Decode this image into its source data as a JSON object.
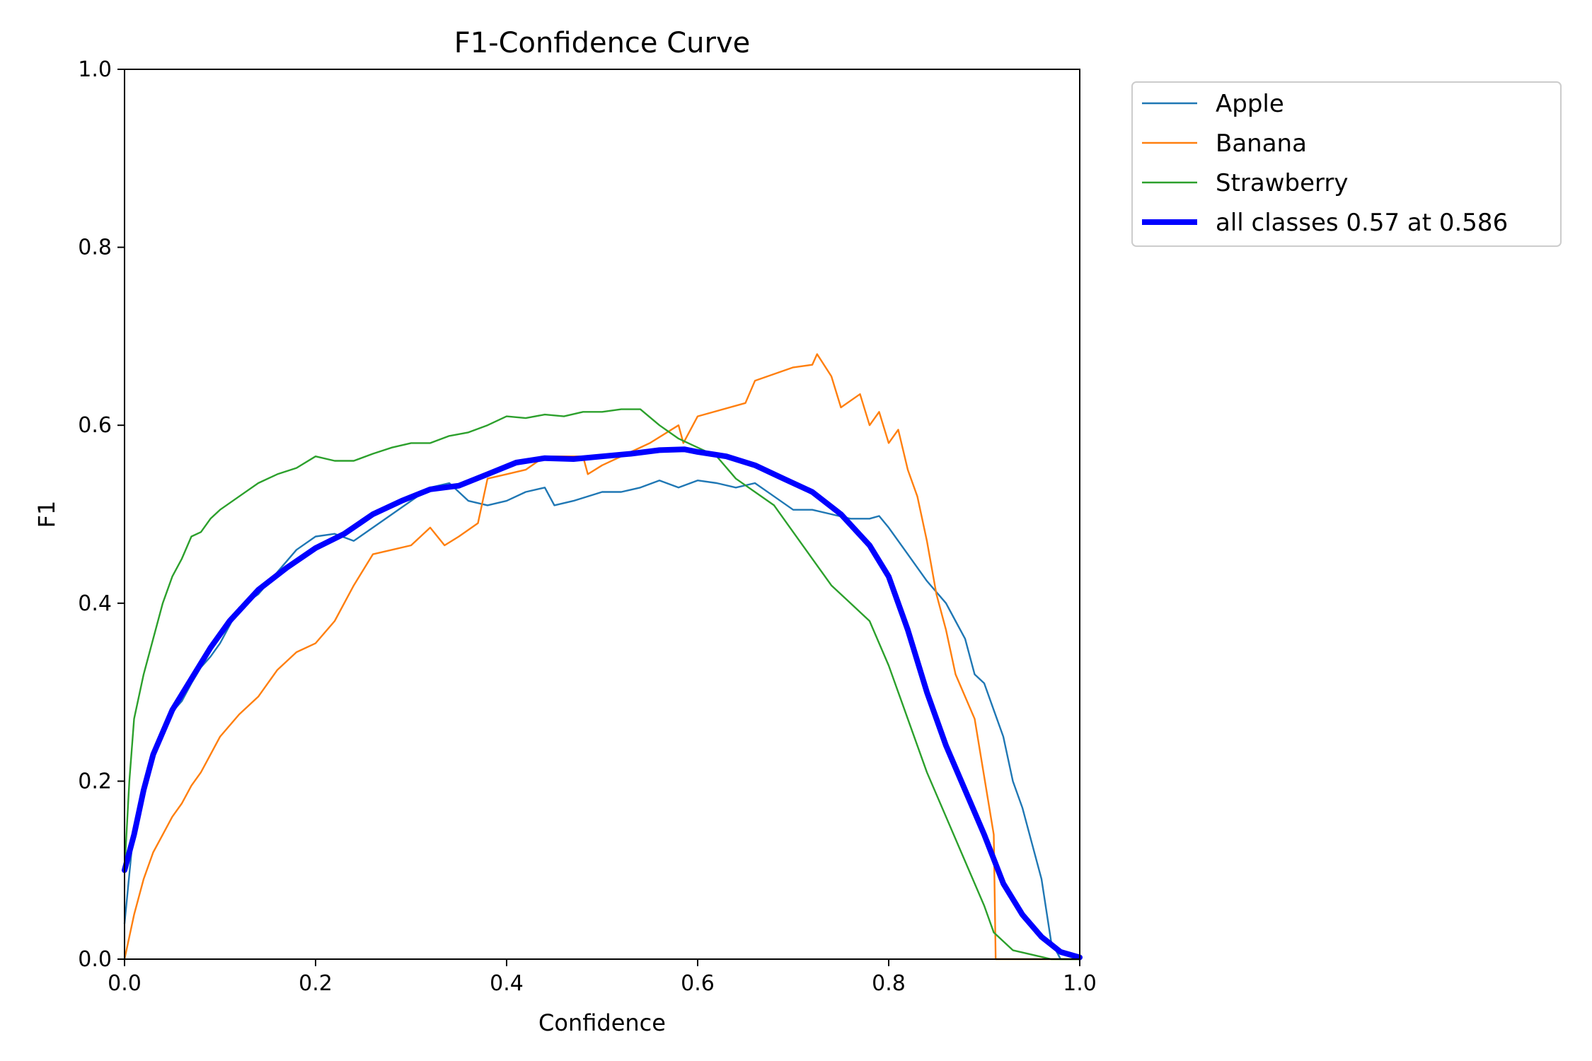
{
  "chart_data": {
    "type": "line",
    "title": "F1-Confidence Curve",
    "xlabel": "Confidence",
    "ylabel": "F1",
    "xlim": [
      0,
      1
    ],
    "ylim": [
      0,
      1
    ],
    "xticks": [
      "0.0",
      "0.2",
      "0.4",
      "0.6",
      "0.8",
      "1.0"
    ],
    "yticks": [
      "0.0",
      "0.2",
      "0.4",
      "0.6",
      "0.8",
      "1.0"
    ],
    "grid": false,
    "legend_position": "outside-top-right",
    "series": [
      {
        "name": "Apple",
        "color": "#1f77b4",
        "points": [
          [
            0.0,
            0.04
          ],
          [
            0.01,
            0.15
          ],
          [
            0.02,
            0.19
          ],
          [
            0.03,
            0.225
          ],
          [
            0.04,
            0.255
          ],
          [
            0.05,
            0.278
          ],
          [
            0.06,
            0.29
          ],
          [
            0.07,
            0.31
          ],
          [
            0.08,
            0.328
          ],
          [
            0.09,
            0.34
          ],
          [
            0.1,
            0.355
          ],
          [
            0.11,
            0.375
          ],
          [
            0.12,
            0.395
          ],
          [
            0.14,
            0.41
          ],
          [
            0.16,
            0.435
          ],
          [
            0.18,
            0.46
          ],
          [
            0.2,
            0.475
          ],
          [
            0.22,
            0.478
          ],
          [
            0.24,
            0.47
          ],
          [
            0.26,
            0.485
          ],
          [
            0.28,
            0.5
          ],
          [
            0.3,
            0.515
          ],
          [
            0.32,
            0.53
          ],
          [
            0.34,
            0.535
          ],
          [
            0.36,
            0.515
          ],
          [
            0.38,
            0.51
          ],
          [
            0.4,
            0.515
          ],
          [
            0.42,
            0.525
          ],
          [
            0.44,
            0.53
          ],
          [
            0.45,
            0.51
          ],
          [
            0.47,
            0.515
          ],
          [
            0.5,
            0.525
          ],
          [
            0.52,
            0.525
          ],
          [
            0.54,
            0.53
          ],
          [
            0.56,
            0.538
          ],
          [
            0.58,
            0.53
          ],
          [
            0.6,
            0.538
          ],
          [
            0.62,
            0.535
          ],
          [
            0.64,
            0.53
          ],
          [
            0.66,
            0.535
          ],
          [
            0.68,
            0.52
          ],
          [
            0.7,
            0.505
          ],
          [
            0.72,
            0.505
          ],
          [
            0.74,
            0.5
          ],
          [
            0.76,
            0.495
          ],
          [
            0.78,
            0.495
          ],
          [
            0.79,
            0.498
          ],
          [
            0.8,
            0.485
          ],
          [
            0.82,
            0.455
          ],
          [
            0.84,
            0.425
          ],
          [
            0.86,
            0.4
          ],
          [
            0.87,
            0.38
          ],
          [
            0.88,
            0.36
          ],
          [
            0.89,
            0.32
          ],
          [
            0.9,
            0.31
          ],
          [
            0.91,
            0.28
          ],
          [
            0.92,
            0.25
          ],
          [
            0.93,
            0.2
          ],
          [
            0.94,
            0.17
          ],
          [
            0.95,
            0.13
          ],
          [
            0.96,
            0.09
          ],
          [
            0.97,
            0.02
          ],
          [
            0.98,
            0.0
          ],
          [
            1.0,
            0.0
          ]
        ]
      },
      {
        "name": "Banana",
        "color": "#ff7f0e",
        "points": [
          [
            0.0,
            0.0
          ],
          [
            0.01,
            0.05
          ],
          [
            0.02,
            0.09
          ],
          [
            0.03,
            0.12
          ],
          [
            0.04,
            0.14
          ],
          [
            0.05,
            0.16
          ],
          [
            0.06,
            0.175
          ],
          [
            0.07,
            0.195
          ],
          [
            0.08,
            0.21
          ],
          [
            0.09,
            0.23
          ],
          [
            0.1,
            0.25
          ],
          [
            0.12,
            0.275
          ],
          [
            0.14,
            0.295
          ],
          [
            0.16,
            0.325
          ],
          [
            0.18,
            0.345
          ],
          [
            0.2,
            0.355
          ],
          [
            0.22,
            0.38
          ],
          [
            0.24,
            0.42
          ],
          [
            0.26,
            0.455
          ],
          [
            0.28,
            0.46
          ],
          [
            0.3,
            0.465
          ],
          [
            0.32,
            0.485
          ],
          [
            0.335,
            0.465
          ],
          [
            0.35,
            0.475
          ],
          [
            0.37,
            0.49
          ],
          [
            0.38,
            0.54
          ],
          [
            0.4,
            0.545
          ],
          [
            0.42,
            0.55
          ],
          [
            0.44,
            0.565
          ],
          [
            0.48,
            0.565
          ],
          [
            0.485,
            0.545
          ],
          [
            0.5,
            0.555
          ],
          [
            0.55,
            0.58
          ],
          [
            0.58,
            0.6
          ],
          [
            0.585,
            0.58
          ],
          [
            0.6,
            0.61
          ],
          [
            0.65,
            0.625
          ],
          [
            0.66,
            0.65
          ],
          [
            0.7,
            0.665
          ],
          [
            0.72,
            0.668
          ],
          [
            0.725,
            0.68
          ],
          [
            0.74,
            0.655
          ],
          [
            0.75,
            0.62
          ],
          [
            0.77,
            0.635
          ],
          [
            0.78,
            0.6
          ],
          [
            0.79,
            0.615
          ],
          [
            0.8,
            0.58
          ],
          [
            0.81,
            0.595
          ],
          [
            0.82,
            0.55
          ],
          [
            0.83,
            0.52
          ],
          [
            0.84,
            0.47
          ],
          [
            0.85,
            0.41
          ],
          [
            0.86,
            0.37
          ],
          [
            0.87,
            0.32
          ],
          [
            0.89,
            0.27
          ],
          [
            0.9,
            0.205
          ],
          [
            0.91,
            0.14
          ],
          [
            0.912,
            0.0
          ],
          [
            1.0,
            0.0
          ]
        ]
      },
      {
        "name": "Strawberry",
        "color": "#2ca02c",
        "points": [
          [
            0.0,
            0.1
          ],
          [
            0.005,
            0.2
          ],
          [
            0.01,
            0.27
          ],
          [
            0.02,
            0.32
          ],
          [
            0.03,
            0.36
          ],
          [
            0.04,
            0.4
          ],
          [
            0.05,
            0.43
          ],
          [
            0.06,
            0.45
          ],
          [
            0.07,
            0.475
          ],
          [
            0.08,
            0.48
          ],
          [
            0.09,
            0.495
          ],
          [
            0.1,
            0.505
          ],
          [
            0.12,
            0.52
          ],
          [
            0.14,
            0.535
          ],
          [
            0.16,
            0.545
          ],
          [
            0.18,
            0.552
          ],
          [
            0.2,
            0.565
          ],
          [
            0.22,
            0.56
          ],
          [
            0.24,
            0.56
          ],
          [
            0.26,
            0.568
          ],
          [
            0.28,
            0.575
          ],
          [
            0.3,
            0.58
          ],
          [
            0.32,
            0.58
          ],
          [
            0.34,
            0.588
          ],
          [
            0.36,
            0.592
          ],
          [
            0.38,
            0.6
          ],
          [
            0.4,
            0.61
          ],
          [
            0.42,
            0.608
          ],
          [
            0.44,
            0.612
          ],
          [
            0.46,
            0.61
          ],
          [
            0.48,
            0.615
          ],
          [
            0.5,
            0.615
          ],
          [
            0.52,
            0.618
          ],
          [
            0.54,
            0.618
          ],
          [
            0.56,
            0.6
          ],
          [
            0.58,
            0.585
          ],
          [
            0.6,
            0.575
          ],
          [
            0.62,
            0.565
          ],
          [
            0.64,
            0.54
          ],
          [
            0.66,
            0.525
          ],
          [
            0.68,
            0.51
          ],
          [
            0.7,
            0.48
          ],
          [
            0.72,
            0.45
          ],
          [
            0.74,
            0.42
          ],
          [
            0.76,
            0.4
          ],
          [
            0.78,
            0.38
          ],
          [
            0.8,
            0.33
          ],
          [
            0.82,
            0.27
          ],
          [
            0.84,
            0.21
          ],
          [
            0.86,
            0.16
          ],
          [
            0.88,
            0.11
          ],
          [
            0.9,
            0.06
          ],
          [
            0.91,
            0.03
          ],
          [
            0.93,
            0.01
          ],
          [
            0.95,
            0.005
          ],
          [
            0.97,
            0.0
          ],
          [
            1.0,
            0.0
          ]
        ]
      },
      {
        "name": "all classes 0.57 at 0.586",
        "color": "#0000ff",
        "points": [
          [
            0.0,
            0.1
          ],
          [
            0.01,
            0.14
          ],
          [
            0.02,
            0.19
          ],
          [
            0.03,
            0.23
          ],
          [
            0.05,
            0.28
          ],
          [
            0.07,
            0.315
          ],
          [
            0.09,
            0.35
          ],
          [
            0.11,
            0.38
          ],
          [
            0.14,
            0.415
          ],
          [
            0.17,
            0.44
          ],
          [
            0.2,
            0.462
          ],
          [
            0.23,
            0.478
          ],
          [
            0.26,
            0.5
          ],
          [
            0.29,
            0.515
          ],
          [
            0.32,
            0.528
          ],
          [
            0.35,
            0.532
          ],
          [
            0.38,
            0.545
          ],
          [
            0.41,
            0.558
          ],
          [
            0.44,
            0.563
          ],
          [
            0.47,
            0.562
          ],
          [
            0.5,
            0.565
          ],
          [
            0.53,
            0.568
          ],
          [
            0.56,
            0.572
          ],
          [
            0.586,
            0.573
          ],
          [
            0.6,
            0.57
          ],
          [
            0.63,
            0.565
          ],
          [
            0.66,
            0.555
          ],
          [
            0.69,
            0.54
          ],
          [
            0.72,
            0.525
          ],
          [
            0.75,
            0.5
          ],
          [
            0.78,
            0.465
          ],
          [
            0.8,
            0.43
          ],
          [
            0.82,
            0.37
          ],
          [
            0.84,
            0.3
          ],
          [
            0.86,
            0.24
          ],
          [
            0.88,
            0.19
          ],
          [
            0.9,
            0.14
          ],
          [
            0.92,
            0.085
          ],
          [
            0.94,
            0.05
          ],
          [
            0.96,
            0.025
          ],
          [
            0.98,
            0.008
          ],
          [
            1.0,
            0.002
          ]
        ]
      }
    ]
  }
}
